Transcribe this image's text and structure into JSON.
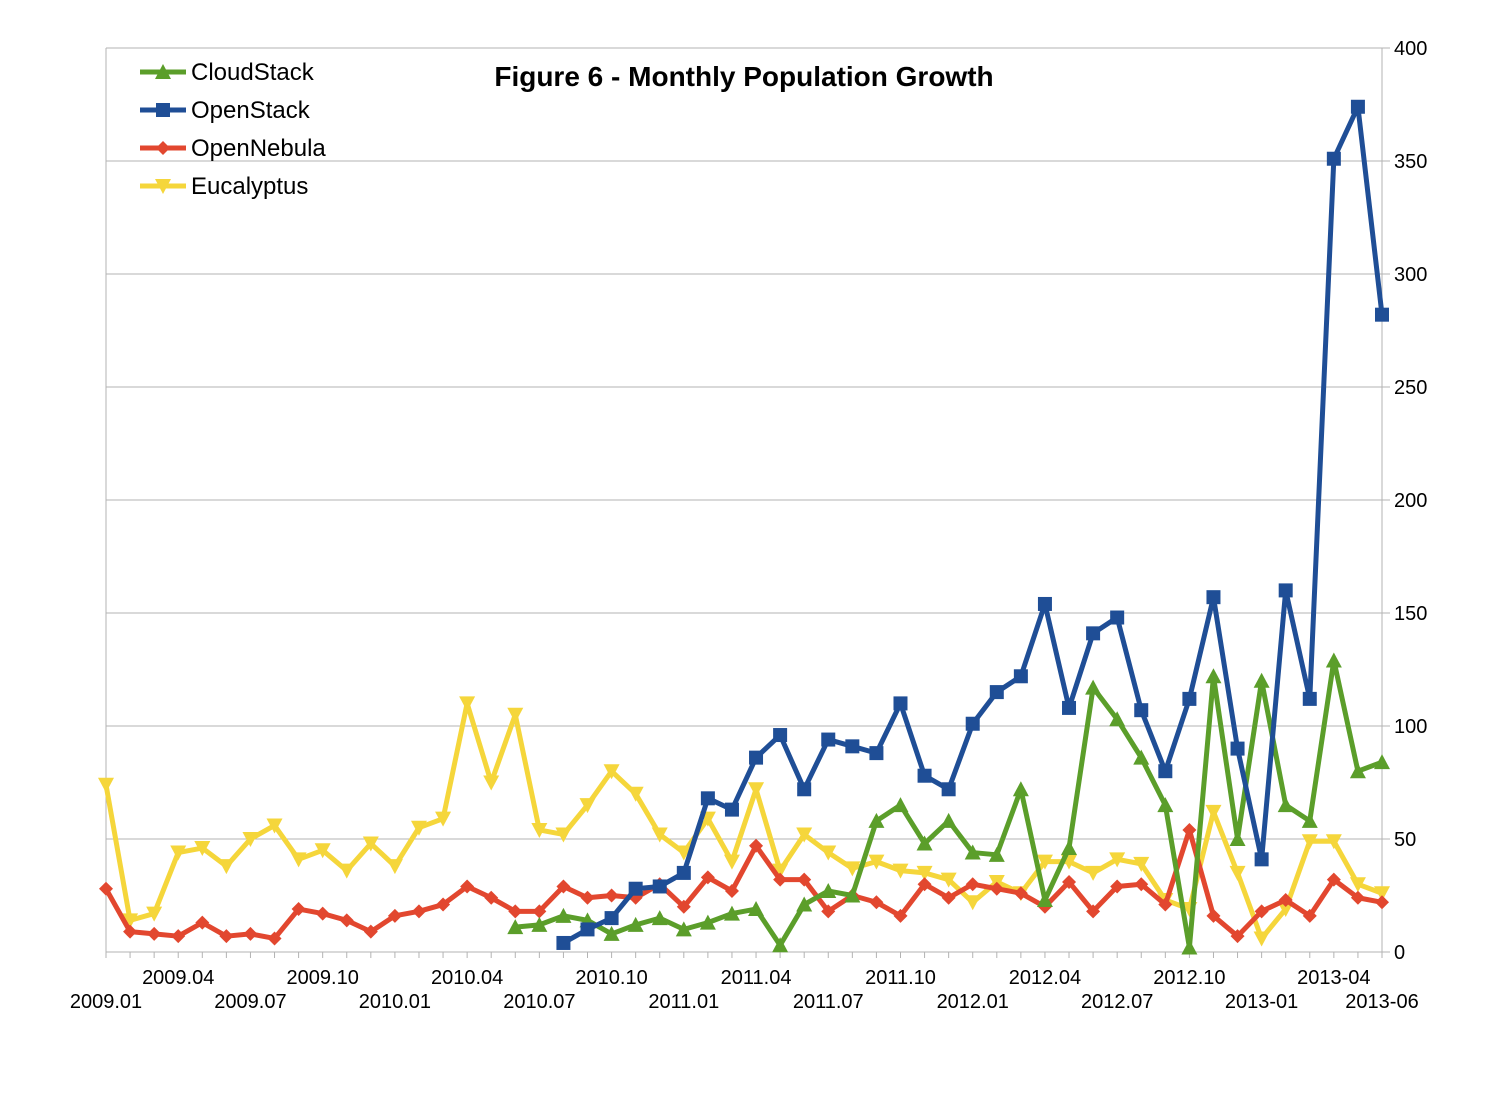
{
  "chart_data": {
    "type": "line",
    "title": "Figure 6 - Monthly Population Growth",
    "xlabel": "",
    "ylabel": "",
    "ylim": [
      0,
      400
    ],
    "yticks": [
      0,
      50,
      100,
      150,
      200,
      250,
      300,
      350,
      400
    ],
    "grid": true,
    "legend_position": "top-left",
    "x_tick_labels_lower": [
      "2009.01",
      "2009.07",
      "2010.01",
      "2010.07",
      "2011.01",
      "2011.07",
      "2012.01",
      "2012.07",
      "2013-01",
      "2013-06"
    ],
    "x_tick_labels_upper": [
      "2009.04",
      "2009.10",
      "2010.04",
      "2010.10",
      "2011.04",
      "2011.10",
      "2012.04",
      "2012.10",
      "2013-04"
    ],
    "months": 54,
    "series": [
      {
        "name": "CloudStack",
        "color": "#5b9e2a",
        "marker": "triangle-up",
        "start_index": 17,
        "values": [
          11,
          12,
          16,
          14,
          8,
          12,
          15,
          10,
          13,
          17,
          19,
          3,
          21,
          27,
          25,
          58,
          65,
          48,
          58,
          44,
          43,
          72,
          23,
          46,
          117,
          103,
          86,
          65,
          2,
          122,
          50,
          120,
          65,
          58,
          129,
          80,
          84
        ]
      },
      {
        "name": "OpenStack",
        "color": "#1f4e96",
        "marker": "square",
        "start_index": 19,
        "values": [
          4,
          10,
          15,
          28,
          29,
          35,
          68,
          63,
          86,
          96,
          72,
          94,
          91,
          88,
          110,
          78,
          72,
          101,
          115,
          122,
          154,
          108,
          141,
          148,
          107,
          80,
          112,
          157,
          90,
          41,
          160,
          112,
          351,
          374,
          282
        ]
      },
      {
        "name": "OpenNebula",
        "color": "#e2472f",
        "marker": "diamond",
        "start_index": 0,
        "values": [
          28,
          9,
          8,
          7,
          13,
          7,
          8,
          6,
          19,
          17,
          14,
          9,
          16,
          18,
          21,
          29,
          24,
          18,
          18,
          29,
          24,
          25,
          24,
          30,
          20,
          33,
          27,
          47,
          32,
          32,
          18,
          25,
          22,
          16,
          30,
          24,
          30,
          28,
          26,
          20,
          31,
          18,
          29,
          30,
          21,
          54,
          16,
          7,
          18,
          23,
          16,
          32,
          24,
          22
        ]
      },
      {
        "name": "Eucalyptus",
        "color": "#f5d63b",
        "marker": "triangle-down",
        "start_index": 0,
        "values": [
          74,
          14,
          17,
          44,
          46,
          38,
          50,
          56,
          41,
          45,
          36,
          48,
          38,
          55,
          59,
          110,
          75,
          105,
          54,
          52,
          65,
          80,
          70,
          52,
          44,
          59,
          40,
          72,
          36,
          52,
          44,
          37,
          40,
          36,
          35,
          32,
          22,
          31,
          26,
          40,
          40,
          35,
          41,
          39,
          23,
          19,
          62,
          35,
          6,
          19,
          49,
          49,
          30,
          26
        ]
      }
    ]
  }
}
